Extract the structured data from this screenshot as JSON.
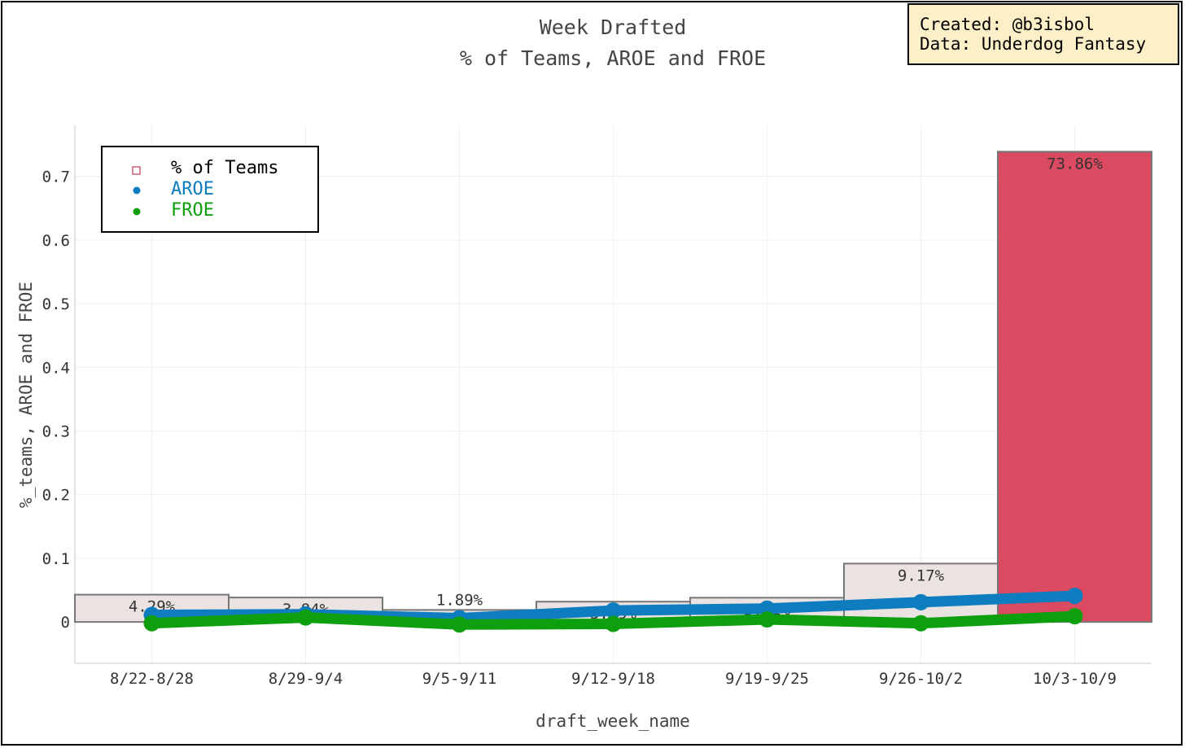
{
  "credit": {
    "line1": "Created: @b3isbol",
    "line2": "Data: Underdog Fantasy"
  },
  "colors": {
    "bar_fill": "#ebe3e1",
    "bar_fill_last": "#db4a60",
    "bar_stroke": "#777777",
    "aroe": "#0d7dc0",
    "froe": "#0e9f0f",
    "text": "#333333",
    "grid": "#efefef"
  },
  "chart_data": {
    "type": "bar",
    "title": "Week Drafted",
    "subtitle": "% of Teams, AROE and FROE",
    "xlabel": "draft_week_name",
    "ylabel": "%_teams, AROE and FROE",
    "ylim": [
      -0.065,
      0.78
    ],
    "yticks": [
      0,
      0.1,
      0.2,
      0.3,
      0.4,
      0.5,
      0.6,
      0.7
    ],
    "ytick_labels": [
      "0",
      "0.1",
      "0.2",
      "0.3",
      "0.4",
      "0.5",
      "0.6",
      "0.7"
    ],
    "categories": [
      "8/22-8/28",
      "8/29-9/4",
      "9/5-9/11",
      "9/12-9/18",
      "9/19-9/25",
      "9/26-10/2",
      "10/3-10/9"
    ],
    "legend_position": "top-left",
    "series": [
      {
        "name": "% of Teams",
        "kind": "bar",
        "values": [
          0.0429,
          0.0384,
          0.0189,
          0.0319,
          0.0381,
          0.0917,
          0.7386
        ],
        "labels": [
          "4.29%",
          "3.84%",
          "1.89%",
          "3.19%",
          "3.81%",
          "9.17%",
          "73.86%"
        ]
      },
      {
        "name": "AROE",
        "kind": "line",
        "values": [
          0.011,
          0.012,
          0.006,
          0.018,
          0.021,
          0.031,
          0.041
        ]
      },
      {
        "name": "FROE",
        "kind": "line",
        "values": [
          -0.002,
          0.007,
          -0.004,
          -0.003,
          0.004,
          -0.002,
          0.009
        ]
      }
    ]
  }
}
